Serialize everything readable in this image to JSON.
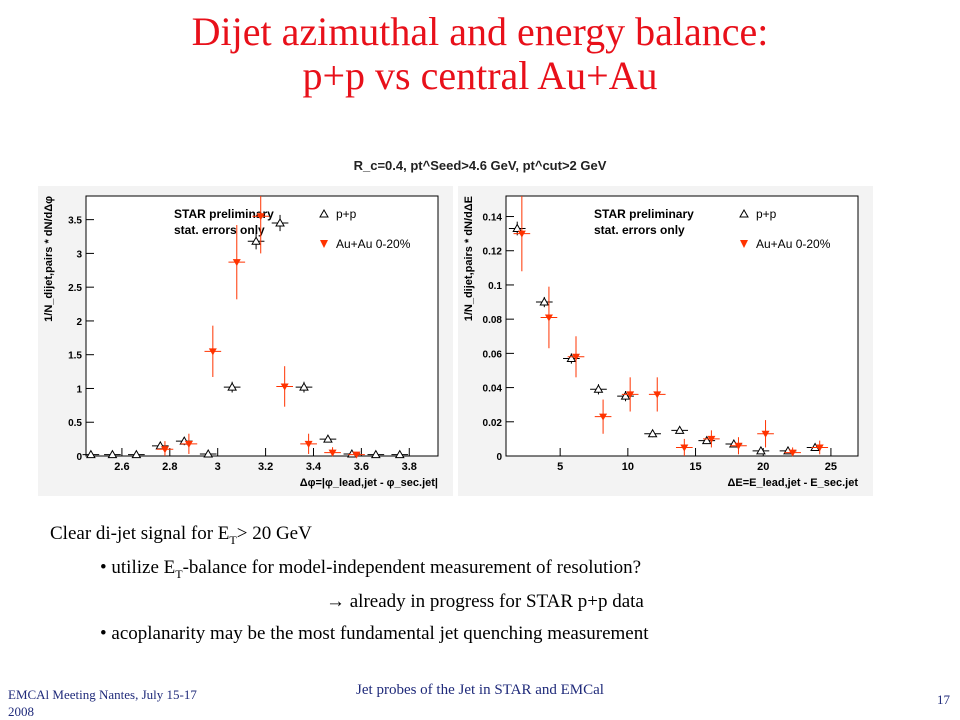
{
  "slide": {
    "title_line1": "Dijet azimuthal and energy balance:",
    "title_line2": "p+p vs central Au+Au",
    "cut_label": "R_c=0.4, pt^Seed>4.6 GeV, pt^cut>2 GeV",
    "caption": {
      "line1_pre": "Clear di-jet signal for E",
      "line1_sub": "T",
      "line1_post": "> 20 GeV",
      "bullet1_pre": "• utilize E",
      "bullet1_sub": "T",
      "bullet1_post": "-balance for model-independent measurement of resolution?",
      "arrow_line": "→ already in progress for STAR p+p data",
      "bullet2": "• acoplanarity may be the most fundamental jet quenching measurement"
    },
    "footer": {
      "left": "EMCAl Meeting Nantes, July 15-17 2008",
      "center": "Jet probes of the Jet in STAR and EMCal",
      "page": "17"
    }
  },
  "colors": {
    "title": "#e8101a",
    "auau": "#ff3300",
    "pp": "#000000"
  },
  "chart_data": [
    {
      "type": "scatter",
      "name": "azimuthal",
      "ylabel": "1/N_dijet,pairs * dN/dΔφ",
      "xlabel": "Δφ=|φ_lead,jet - φ_sec.jet|",
      "xlim": [
        2.45,
        3.92
      ],
      "ylim": [
        0,
        3.85
      ],
      "xticks": [
        2.6,
        2.8,
        3,
        3.2,
        3.4,
        3.6,
        3.8
      ],
      "yticks": [
        0,
        0.5,
        1,
        1.5,
        2,
        2.5,
        3,
        3.5
      ],
      "legend_text": [
        "STAR preliminary",
        "stat. errors only"
      ],
      "series": [
        {
          "name": "p+p",
          "marker": "open-triangle-up",
          "x": [
            2.48,
            2.57,
            2.67,
            2.77,
            2.87,
            2.97,
            3.07,
            3.17,
            3.27,
            3.37,
            3.47,
            3.57,
            3.67,
            3.77
          ],
          "y": [
            0.02,
            0.02,
            0.02,
            0.15,
            0.22,
            0.03,
            1.02,
            3.18,
            3.45,
            1.02,
            0.25,
            0.03,
            0.02,
            0.02
          ],
          "err": [
            0.01,
            0.01,
            0.01,
            0.05,
            0.06,
            0.02,
            0.08,
            0.12,
            0.12,
            0.08,
            0.05,
            0.02,
            0.01,
            0.01
          ]
        },
        {
          "name": "Au+Au 0-20%",
          "marker": "filled-triangle-down",
          "x": [
            2.77,
            2.87,
            2.97,
            3.07,
            3.17,
            3.27,
            3.37,
            3.47,
            3.57
          ],
          "y": [
            0.1,
            0.18,
            1.55,
            2.87,
            3.55,
            1.03,
            0.18,
            0.05,
            0.02
          ],
          "err": [
            0.12,
            0.15,
            0.38,
            0.55,
            0.55,
            0.3,
            0.15,
            0.08,
            0.04
          ]
        }
      ]
    },
    {
      "type": "scatter",
      "name": "energy",
      "ylabel": "1/N_dijet,pairs * dN/dΔE",
      "xlabel": "ΔE=E_lead,jet - E_sec.jet",
      "xlim": [
        1,
        27
      ],
      "ylim": [
        0,
        0.152
      ],
      "xticks": [
        5,
        10,
        15,
        20,
        25
      ],
      "yticks": [
        0,
        0.02,
        0.04,
        0.06,
        0.08,
        0.1,
        0.12,
        0.14
      ],
      "legend_text": [
        "STAR preliminary",
        "stat. errors only"
      ],
      "series": [
        {
          "name": "p+p",
          "marker": "open-triangle-up",
          "x": [
            2,
            4,
            6,
            8,
            10,
            12,
            14,
            16,
            18,
            20,
            22,
            24
          ],
          "y": [
            0.133,
            0.09,
            0.057,
            0.039,
            0.035,
            0.013,
            0.015,
            0.009,
            0.007,
            0.003,
            0.003,
            0.005
          ],
          "err": [
            0.004,
            0.003,
            0.003,
            0.003,
            0.003,
            0.002,
            0.002,
            0.002,
            0.002,
            0.001,
            0.001,
            0.002
          ]
        },
        {
          "name": "Au+Au 0-20%",
          "marker": "filled-triangle-down",
          "x": [
            2,
            4,
            6,
            8,
            10,
            12,
            14,
            16,
            18,
            20,
            22,
            24
          ],
          "y": [
            0.13,
            0.081,
            0.058,
            0.023,
            0.036,
            0.036,
            0.005,
            0.01,
            0.006,
            0.013,
            0.002,
            0.005
          ],
          "err": [
            0.022,
            0.018,
            0.012,
            0.01,
            0.01,
            0.01,
            0.005,
            0.005,
            0.005,
            0.008,
            0.003,
            0.004
          ]
        }
      ]
    }
  ]
}
